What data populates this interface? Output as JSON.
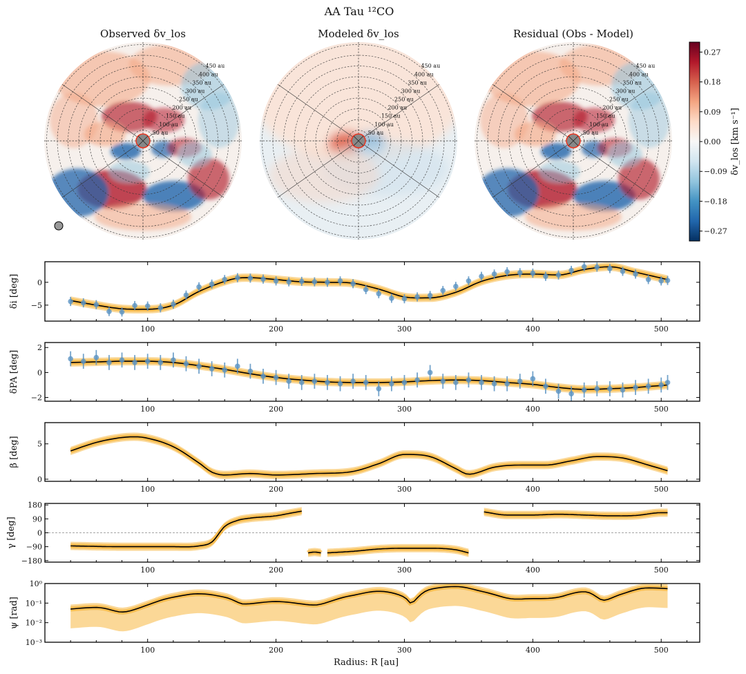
{
  "figure": {
    "title": "AA Tau ¹²CO",
    "x_axis_label": "Radius: R [au]",
    "x_ticks": [
      100,
      200,
      300,
      400,
      500
    ],
    "x_range": [
      20,
      530
    ]
  },
  "maps": {
    "titles": [
      "Observed δv_los",
      "Modeled δv_los",
      "Residual (Obs - Model)"
    ],
    "ring_labels": [
      "50 au",
      "100 au",
      "150 au",
      "200 au",
      "250 au",
      "300 au",
      "350 au",
      "400 au",
      "450 au"
    ],
    "colorbar": {
      "label": "δv_los [km s⁻¹]",
      "ticks": [
        "0.27",
        "0.18",
        "0.09",
        "0.00",
        "−0.09",
        "−0.18",
        "−0.27"
      ],
      "range": [
        -0.3,
        0.3
      ],
      "colors": [
        "#67001f",
        "#b2182b",
        "#d6604d",
        "#f4a582",
        "#fddbc7",
        "#f7f7f7",
        "#d1e5f0",
        "#92c5de",
        "#4393c3",
        "#2166ac",
        "#053061"
      ]
    }
  },
  "chart_data": [
    {
      "type": "line",
      "title": "δi",
      "ylabel": "δi [deg]",
      "ylim": [
        -8.5,
        4.5
      ],
      "yticks": [
        0,
        -5
      ],
      "ytick_labels": [
        "0",
        "−5"
      ],
      "x": [
        40,
        60,
        80,
        100,
        120,
        140,
        160,
        170,
        180,
        200,
        220,
        240,
        260,
        280,
        300,
        320,
        340,
        360,
        380,
        400,
        420,
        440,
        460,
        480,
        505
      ],
      "series": [
        {
          "name": "model",
          "values": [
            -4.0,
            -5.0,
            -5.8,
            -5.9,
            -5.0,
            -2.0,
            0.2,
            0.9,
            1.0,
            0.6,
            0.1,
            0.0,
            -0.2,
            -1.5,
            -3.2,
            -3.4,
            -2.2,
            0.2,
            1.5,
            1.8,
            1.6,
            2.8,
            3.4,
            2.2,
            0.6
          ]
        }
      ],
      "points": {
        "name": "data",
        "x": [
          40,
          50,
          60,
          70,
          80,
          90,
          100,
          110,
          120,
          130,
          140,
          150,
          160,
          170,
          180,
          190,
          200,
          210,
          220,
          230,
          240,
          250,
          260,
          270,
          280,
          290,
          300,
          310,
          320,
          330,
          340,
          350,
          360,
          370,
          380,
          390,
          400,
          410,
          420,
          430,
          440,
          450,
          460,
          470,
          480,
          490,
          500,
          505
        ],
        "y": [
          -4.2,
          -4.5,
          -4.9,
          -6.4,
          -6.5,
          -5.1,
          -5.2,
          -5.6,
          -4.8,
          -2.8,
          -1.0,
          -0.4,
          0.6,
          1.0,
          0.9,
          0.7,
          0.3,
          0.1,
          0.2,
          0.1,
          0.0,
          0.3,
          -0.3,
          -1.6,
          -2.5,
          -3.5,
          -3.6,
          -3.2,
          -2.9,
          -1.8,
          -0.9,
          0.3,
          1.3,
          1.8,
          2.3,
          2.1,
          2.0,
          1.3,
          1.6,
          2.6,
          3.4,
          3.3,
          3.0,
          2.4,
          1.8,
          0.6,
          0.3,
          0.4
        ],
        "yerr": 1.0
      }
    },
    {
      "type": "line",
      "title": "δPA",
      "ylabel": "δPA [deg]",
      "ylim": [
        -2.3,
        2.4
      ],
      "yticks": [
        2,
        0,
        -2
      ],
      "ytick_labels": [
        "2",
        "0",
        "−2"
      ],
      "x": [
        40,
        60,
        80,
        100,
        120,
        140,
        160,
        180,
        200,
        220,
        240,
        260,
        280,
        300,
        320,
        340,
        360,
        380,
        400,
        420,
        440,
        460,
        480,
        505
      ],
      "series": [
        {
          "name": "model",
          "values": [
            0.8,
            0.85,
            0.9,
            0.9,
            0.8,
            0.55,
            0.25,
            -0.1,
            -0.4,
            -0.6,
            -0.75,
            -0.8,
            -0.8,
            -0.75,
            -0.65,
            -0.6,
            -0.65,
            -0.8,
            -0.95,
            -1.2,
            -1.35,
            -1.3,
            -1.2,
            -1.0
          ]
        }
      ],
      "points": {
        "name": "data",
        "x": [
          40,
          50,
          60,
          70,
          80,
          90,
          100,
          110,
          120,
          130,
          140,
          150,
          160,
          170,
          180,
          190,
          200,
          210,
          220,
          230,
          240,
          250,
          260,
          270,
          280,
          290,
          300,
          310,
          320,
          330,
          340,
          350,
          360,
          370,
          380,
          390,
          400,
          410,
          420,
          430,
          440,
          450,
          460,
          470,
          480,
          490,
          500,
          505
        ],
        "y": [
          1.1,
          0.9,
          1.2,
          0.8,
          1.0,
          0.8,
          0.9,
          0.8,
          1.0,
          0.7,
          0.5,
          0.3,
          0.2,
          0.5,
          0.1,
          -0.3,
          -0.4,
          -0.7,
          -0.8,
          -0.7,
          -0.8,
          -0.9,
          -0.7,
          -0.8,
          -1.3,
          -0.9,
          -0.8,
          -0.6,
          0.0,
          -0.7,
          -0.8,
          -0.6,
          -0.8,
          -0.9,
          -0.9,
          -0.7,
          -0.5,
          -1.1,
          -1.5,
          -1.7,
          -1.4,
          -1.3,
          -1.3,
          -1.4,
          -1.2,
          -1.1,
          -1.0,
          -0.8
        ],
        "yerr": 0.6
      }
    },
    {
      "type": "line",
      "title": "β",
      "ylabel": "β [deg]",
      "ylim": [
        -0.3,
        8
      ],
      "yticks": [
        5,
        0
      ],
      "ytick_labels": [
        "5",
        "0"
      ],
      "x": [
        40,
        60,
        80,
        90,
        100,
        120,
        140,
        150,
        160,
        180,
        200,
        230,
        260,
        280,
        300,
        320,
        340,
        350,
        370,
        390,
        410,
        430,
        450,
        470,
        490,
        505
      ],
      "series": [
        {
          "name": "model",
          "values": [
            4.0,
            5.2,
            5.9,
            6.0,
            5.8,
            4.6,
            2.3,
            1.0,
            0.6,
            0.8,
            0.6,
            0.8,
            1.1,
            2.2,
            3.5,
            3.2,
            1.5,
            0.7,
            1.7,
            2.0,
            2.0,
            2.6,
            3.2,
            3.0,
            2.0,
            1.2
          ]
        }
      ]
    },
    {
      "type": "line",
      "title": "γ",
      "ylabel": "γ [deg]",
      "ylim": [
        -190,
        190
      ],
      "yticks": [
        180,
        90,
        0,
        -90,
        -180
      ],
      "ytick_labels": [
        "180",
        "90",
        "0",
        "−90",
        "−180"
      ],
      "reference_line": 0,
      "series": [
        {
          "name": "model-1",
          "x": [
            40,
            80,
            120,
            140,
            150,
            160,
            170,
            180,
            200,
            210,
            220
          ],
          "values": [
            -85,
            -90,
            -90,
            -85,
            -60,
            40,
            80,
            95,
            110,
            125,
            140
          ]
        },
        {
          "name": "model-2",
          "x": [
            225,
            230,
            235
          ],
          "values": [
            -130,
            -125,
            -130
          ]
        },
        {
          "name": "model-3",
          "x": [
            240,
            260,
            280,
            300,
            320,
            340,
            350
          ],
          "values": [
            -130,
            -120,
            -105,
            -100,
            -100,
            -110,
            -130
          ]
        },
        {
          "name": "model-4",
          "x": [
            362,
            380,
            400,
            420,
            440,
            460,
            480,
            500,
            505
          ],
          "values": [
            135,
            115,
            115,
            120,
            115,
            110,
            112,
            130,
            130
          ]
        }
      ]
    },
    {
      "type": "line",
      "title": "ψ",
      "ylabel": "ψ [rad]",
      "yscale": "log",
      "ylim": [
        0.001,
        1
      ],
      "yticks": [
        1,
        0.1,
        0.01,
        0.001
      ],
      "ytick_labels": [
        "10⁰",
        "10⁻¹",
        "10⁻²",
        "10⁻³"
      ],
      "x": [
        40,
        60,
        80,
        100,
        120,
        140,
        160,
        175,
        200,
        230,
        260,
        280,
        300,
        305,
        320,
        340,
        360,
        380,
        400,
        420,
        440,
        455,
        470,
        490,
        505
      ],
      "series": [
        {
          "name": "model",
          "values": [
            0.05,
            0.06,
            0.035,
            0.08,
            0.2,
            0.3,
            0.2,
            0.09,
            0.12,
            0.08,
            0.25,
            0.4,
            0.2,
            0.1,
            0.5,
            0.7,
            0.4,
            0.18,
            0.17,
            0.2,
            0.38,
            0.14,
            0.3,
            0.6,
            0.55
          ]
        }
      ]
    }
  ]
}
